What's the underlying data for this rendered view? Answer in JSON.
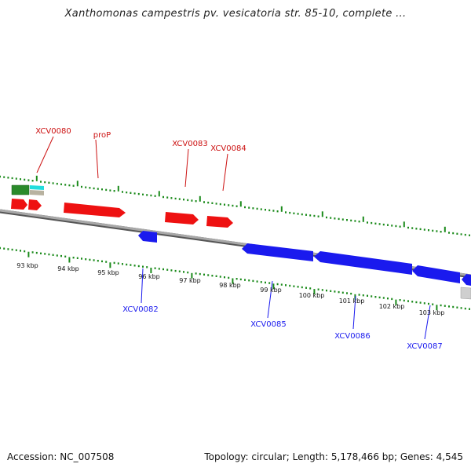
{
  "header": {
    "title": "Xanthomonas campestris pv. vesicatoria str. 85-10, complete ..."
  },
  "footer": {
    "accession": "Accession: NC_007508",
    "summary": "Topology: circular; Length: 5,178,466 bp; Genes: 4,545"
  },
  "colors": {
    "forward_gene": "#ee1111",
    "reverse_gene": "#1a1aee",
    "backbone": "#8a8a8a",
    "tick": "#1a8a1a",
    "green_feature": "#2a8a2a",
    "cyan_feature": "#22dddd",
    "gray_feature": "#c8c8c8"
  },
  "scale_labels": [
    "93 kbp",
    "94 kbp",
    "95 kbp",
    "96 kbp",
    "97 kbp",
    "98 kbp",
    "99 kbp",
    "100 kbp",
    "101 kbp",
    "102 kbp",
    "103 kbp"
  ],
  "forward_gene_labels": [
    "XCV0080",
    "proP",
    "XCV0083",
    "XCV0084"
  ],
  "reverse_gene_labels": [
    "XCV0082",
    "XCV0085",
    "XCV0086",
    "XCV0087"
  ]
}
